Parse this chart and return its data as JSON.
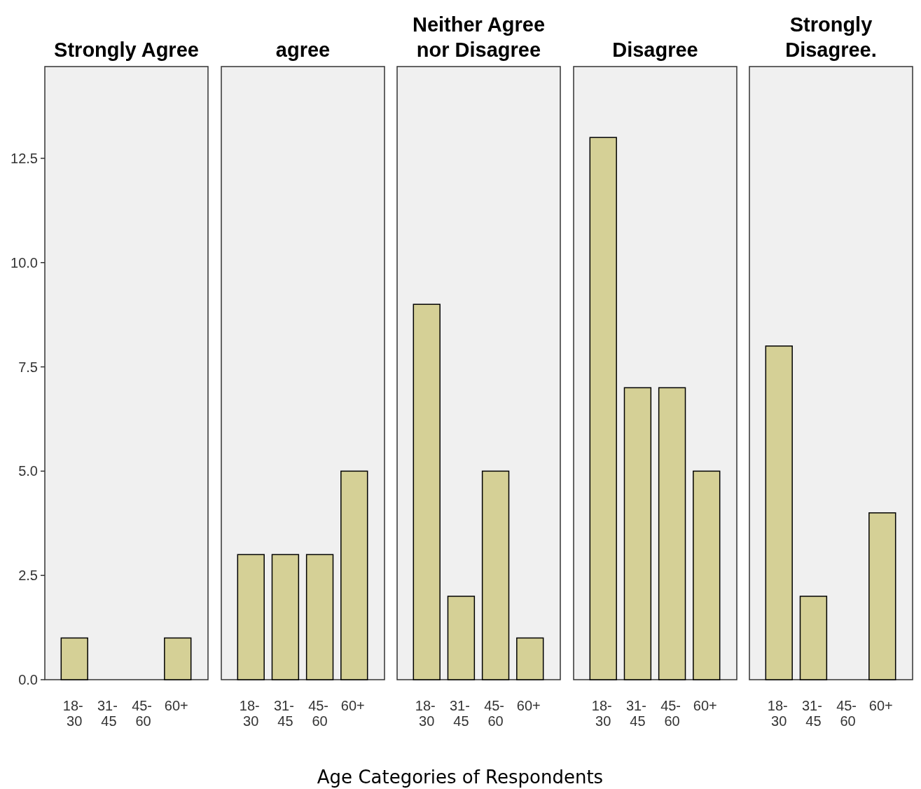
{
  "chart_data": [
    {
      "type": "bar",
      "title": "Strongly Agree",
      "categories": [
        "18-30",
        "31-45",
        "45-60",
        "60+"
      ],
      "values": [
        1,
        0,
        0,
        1
      ],
      "color": "#d5d096",
      "ylim": [
        0,
        14.7
      ],
      "yticks": [
        {
          "value": 0,
          "label": "0.0"
        },
        2.5,
        {
          "value": 5,
          "label": "5.0"
        },
        7.5,
        {
          "value": 10,
          "label": "10.0"
        },
        12.5
      ],
      "grid": false
    },
    {
      "type": "bar",
      "title": "agree",
      "categories": [
        "18-30",
        "31-45",
        "45-60",
        "60+"
      ],
      "values": [
        3,
        3,
        3,
        5
      ],
      "color": "#d5d096",
      "ylim": [
        0,
        14.7
      ],
      "tick_labels": "x",
      "grid": false
    },
    {
      "type": "bar",
      "title": "Neither Agree nor Disagree",
      "categories": [
        "18-30",
        "31-45",
        "45-60",
        "60+"
      ],
      "values": [
        9,
        2,
        5,
        1
      ],
      "color": "#d5d096",
      "ylim": [
        0,
        14.7
      ],
      "tick_labels": "x",
      "xlabel": "Age Categories of Respondents",
      "grid": false
    },
    {
      "type": "bar",
      "title": "Disagree",
      "categories": [
        "18-30",
        "31-45",
        "45-60",
        "60+"
      ],
      "values": [
        13,
        7,
        7,
        5
      ],
      "color": "#d5d096",
      "ylim": [
        0,
        14.7
      ],
      "tick_labels": "x",
      "grid": false
    },
    {
      "type": "bar",
      "title": "Strongly Disagree.",
      "categories": [
        "18-30",
        "31-45",
        "45-60",
        "60+"
      ],
      "values": [
        8,
        2,
        0,
        4
      ],
      "color": "#d5d096",
      "ylim": [
        0,
        14.7
      ],
      "tick_labels": "x",
      "grid": false
    }
  ]
}
